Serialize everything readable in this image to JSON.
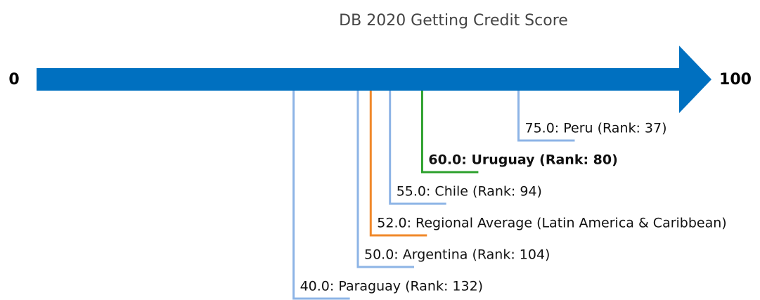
{
  "chart_data": {
    "type": "number_line",
    "title": "DB 2020 Getting Credit Score",
    "xlim": [
      0,
      100
    ],
    "xticks": [
      0,
      100
    ],
    "axis_color": "#0070c0",
    "values": [
      40,
      50,
      52,
      55,
      60,
      75
    ],
    "value_labels": [
      "40.0: Paraguay (Rank: 132)",
      "50.0: Argentina (Rank: 104)",
      "52.0: Regional Average (Latin America & Caribbean)",
      "55.0: Chile (Rank: 94)",
      "60.0: Uruguay (Rank: 80)",
      "75.0: Peru (Rank: 37)"
    ],
    "colors": [
      "#8db4e6",
      "#8db4e6",
      "#f0882a",
      "#8db4e6",
      "#2ca02c",
      "#8db4e6"
    ],
    "bold": [
      false,
      false,
      false,
      false,
      true,
      false
    ]
  }
}
